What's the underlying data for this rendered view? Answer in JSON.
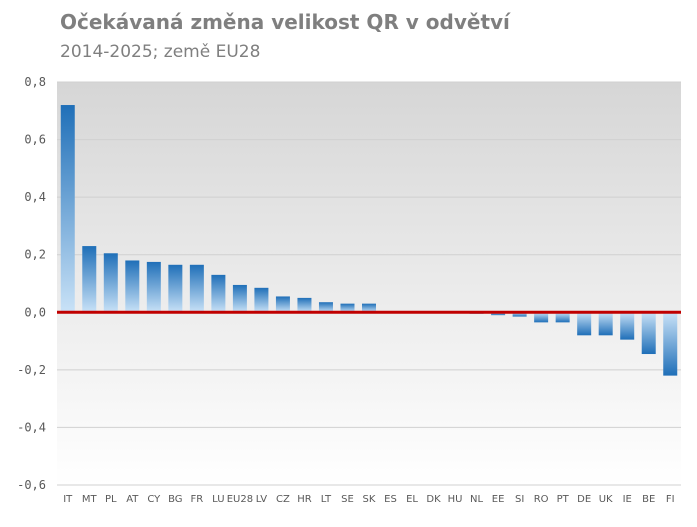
{
  "title": "Očekávaná změna velikost QR v odvětví",
  "subtitle": "2014-2025; země EU28",
  "colors": {
    "bar_top": "#1f6fb8",
    "bar_bottom": "#c9e2f7",
    "zero_line": "#c00000",
    "grid": "#d0d0d0",
    "plot_bg_top": "#d6d6d6",
    "plot_bg_bottom": "#ffffff"
  },
  "chart_data": {
    "type": "bar",
    "categories": [
      "IT",
      "MT",
      "PL",
      "AT",
      "CY",
      "BG",
      "FR",
      "LU",
      "EU28",
      "LV",
      "CZ",
      "HR",
      "LT",
      "SE",
      "SK",
      "ES",
      "EL",
      "DK",
      "HU",
      "NL",
      "EE",
      "SI",
      "RO",
      "PT",
      "DE",
      "UK",
      "IE",
      "BE",
      "FI"
    ],
    "values": [
      0.72,
      0.23,
      0.205,
      0.18,
      0.175,
      0.165,
      0.165,
      0.13,
      0.095,
      0.085,
      0.055,
      0.05,
      0.035,
      0.03,
      0.03,
      0.0,
      0.0,
      0.0,
      -0.002,
      -0.005,
      -0.01,
      -0.015,
      -0.035,
      -0.035,
      -0.08,
      -0.08,
      -0.095,
      -0.145,
      -0.22
    ],
    "ylim": [
      -0.6,
      0.8
    ],
    "yticks": [
      "-0,6",
      "-0,4",
      "-0,2",
      "0,0",
      "0,2",
      "0,4",
      "0,6",
      "0,8"
    ],
    "ytick_values": [
      -0.6,
      -0.4,
      -0.2,
      0.0,
      0.2,
      0.4,
      0.6,
      0.8
    ],
    "grid": true,
    "legend": "none"
  }
}
